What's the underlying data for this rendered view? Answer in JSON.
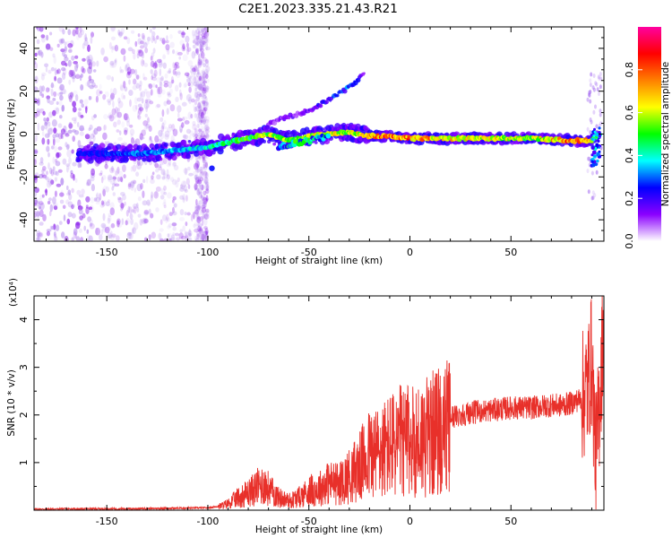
{
  "title": "C2E1.2023.335.21.43.R21",
  "colors": {
    "trace": "#e8302a",
    "scatter": "#8a2be2",
    "frame": "#000000"
  },
  "colorbar": {
    "label": "Normalized spectral amplitude",
    "ticks": [
      "0.0",
      "0.2",
      "0.4",
      "0.6",
      "0.8"
    ],
    "range": [
      0,
      1
    ],
    "colormap": [
      "#ffffff",
      "#8b00ff",
      "#0000ff",
      "#00ffff",
      "#00ff00",
      "#ffff00",
      "#ff8000",
      "#ff0000",
      "#ff00a0"
    ]
  },
  "chart_data": [
    {
      "type": "heatmap",
      "title": "C2E1.2023.335.21.43.R21",
      "xlabel": "Height of straight line (km)",
      "ylabel": "Frequency (Hz)",
      "xlim": [
        -186,
        96
      ],
      "ylim": [
        -50,
        50
      ],
      "xticks": [
        "-150",
        "-100",
        "-50",
        "0",
        "50"
      ],
      "yticks": [
        "-40",
        "-20",
        "0",
        "20",
        "40"
      ],
      "ridge": {
        "x": [
          -164,
          -150,
          -140,
          -130,
          -120,
          -110,
          -100,
          -90,
          -80,
          -70,
          -62,
          -50,
          -40,
          -30,
          -20,
          -10,
          0,
          20,
          40,
          60,
          80,
          90,
          94
        ],
        "y": [
          -9,
          -9,
          -9,
          -9,
          -8,
          -7,
          -6,
          -4,
          -2,
          0,
          -3,
          -1,
          0,
          1,
          -1,
          -1,
          -2,
          -2,
          -2,
          -2,
          -3,
          -3,
          0
        ],
        "amplitude": [
          0.25,
          0.28,
          0.3,
          0.32,
          0.35,
          0.38,
          0.42,
          0.5,
          0.55,
          0.6,
          0.58,
          0.62,
          0.65,
          0.6,
          0.75,
          0.85,
          0.8,
          0.7,
          0.65,
          0.6,
          0.82,
          0.7,
          0.4
        ]
      },
      "branch": {
        "x": [
          -70,
          -60,
          -50,
          -40,
          -35,
          -30,
          -25,
          -22
        ],
        "y": [
          5,
          8,
          11,
          16,
          19,
          22,
          26,
          29
        ],
        "amplitude": [
          0.12,
          0.12,
          0.15,
          0.2,
          0.25,
          0.25,
          0.18,
          0.12
        ]
      }
    },
    {
      "type": "line",
      "xlabel": "Height of straight line (km)",
      "ylabel": "SNR (10 * v/v)",
      "yunit": "(x10⁴)",
      "xlim": [
        -186,
        96
      ],
      "ylim": [
        0,
        4.5
      ],
      "xticks": [
        "-150",
        "-100",
        "-50",
        "0",
        "50"
      ],
      "yticks": [
        "1",
        "2",
        "3",
        "4"
      ],
      "series": [
        {
          "x": [
            -186,
            -160,
            -140,
            -120,
            -100,
            -95,
            -90,
            -85,
            -80,
            -75,
            -72,
            -70,
            -65,
            -60,
            -55,
            -50,
            -45,
            -40,
            -35,
            -30,
            -25,
            -22,
            -20,
            -15,
            -10,
            -5,
            0,
            5,
            10,
            15,
            20,
            25,
            30,
            40,
            50,
            60,
            65,
            70,
            75,
            80,
            85,
            88,
            90,
            92,
            94,
            96
          ],
          "y": [
            0.02,
            0.03,
            0.03,
            0.04,
            0.05,
            0.08,
            0.15,
            0.3,
            0.4,
            0.55,
            0.6,
            0.5,
            0.3,
            0.22,
            0.3,
            0.45,
            0.5,
            0.65,
            0.6,
            0.8,
            1.0,
            1.2,
            1.3,
            1.35,
            1.5,
            1.6,
            1.6,
            1.65,
            1.75,
            1.85,
            1.95,
            2.0,
            2.05,
            2.1,
            2.15,
            2.15,
            2.18,
            2.2,
            2.2,
            2.25,
            2.35,
            2.6,
            3.2,
            1.0,
            2.4,
            4.1
          ]
        }
      ]
    }
  ]
}
